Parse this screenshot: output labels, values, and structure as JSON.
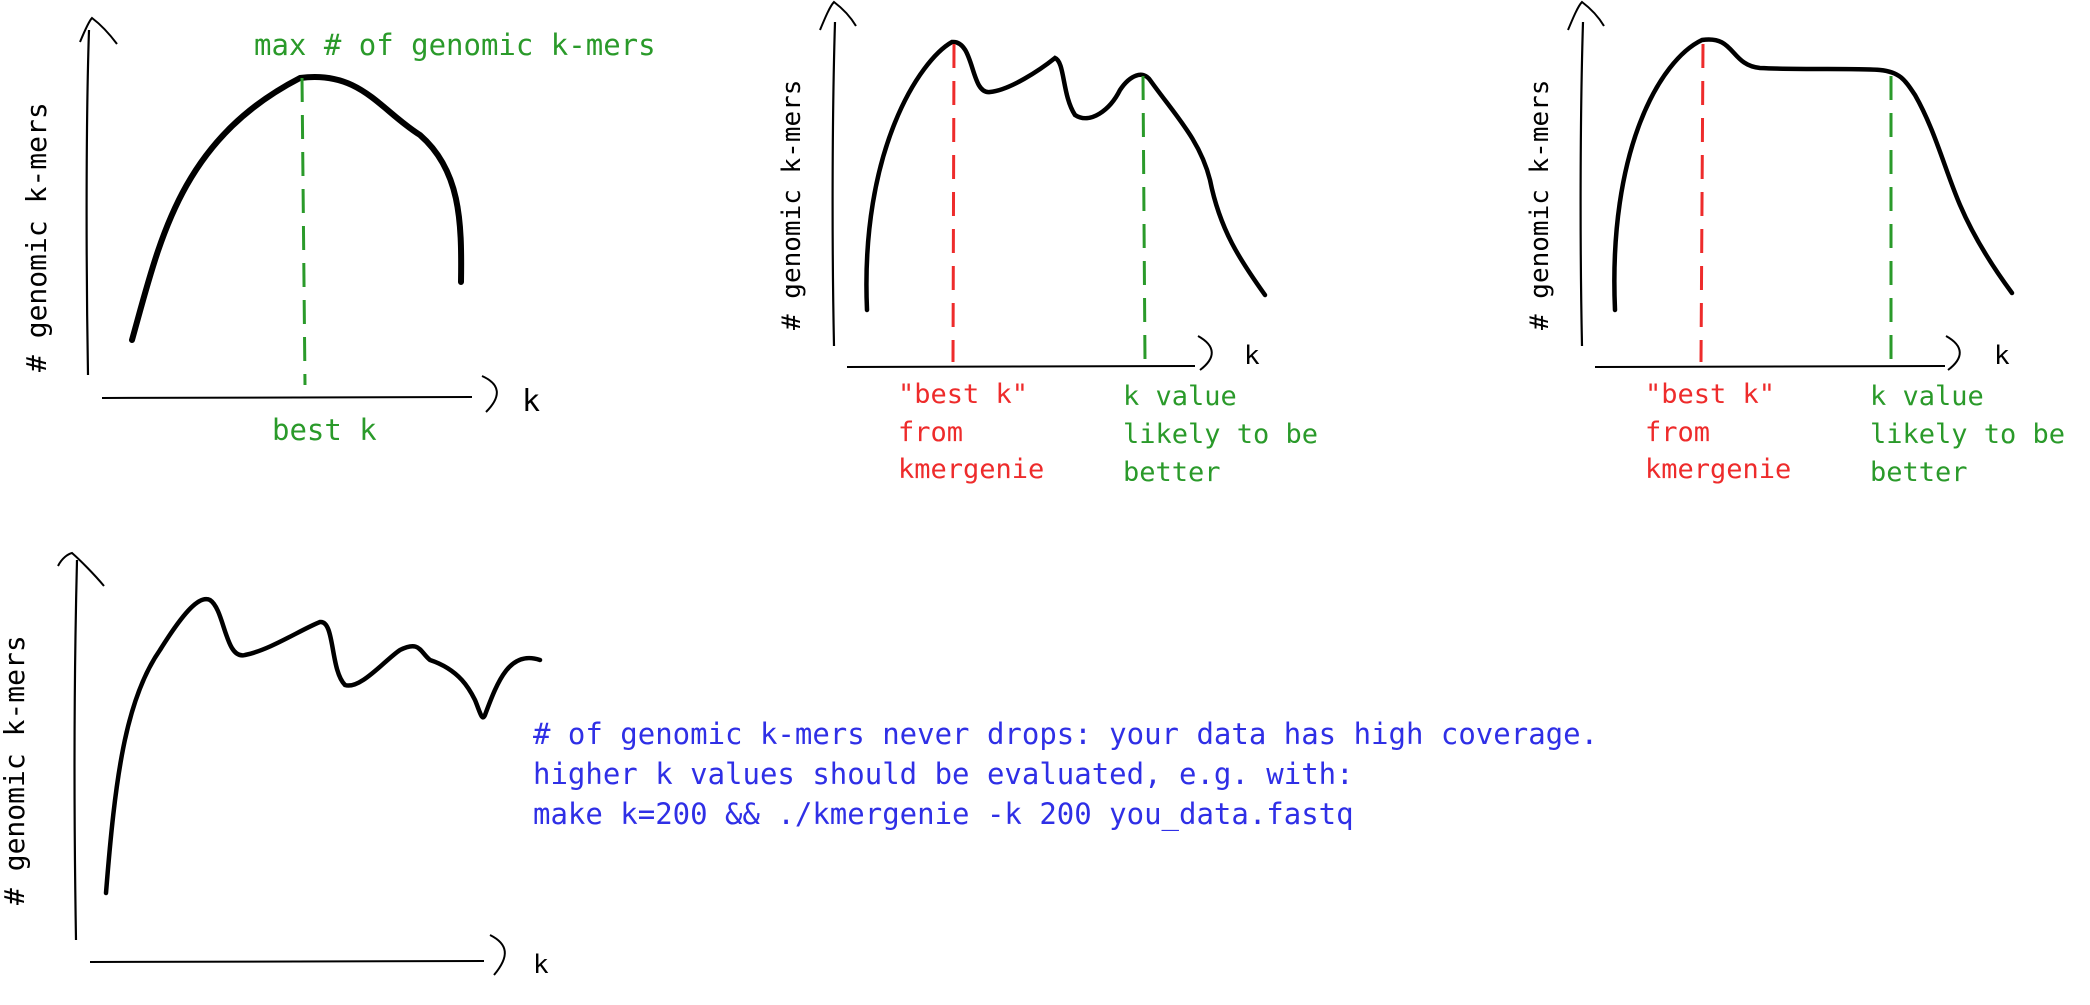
{
  "colors": {
    "ink": "#000000",
    "green": "#2a9a2a",
    "red": "#ee2b2b",
    "blue": "#2f2fe6"
  },
  "panels": [
    {
      "id": "panel1",
      "ylabel": "# genomic k-mers",
      "xlabel": "k",
      "annotations": [
        "max # of genomic k-mers",
        "best k"
      ]
    },
    {
      "id": "panel2",
      "ylabel": "# genomic k-mers",
      "xlabel": "k",
      "red_label": [
        "\"best k\"",
        "from",
        "kmergenie"
      ],
      "green_label": [
        "k value",
        "likely to be",
        "better"
      ]
    },
    {
      "id": "panel3",
      "ylabel": "# genomic k-mers",
      "xlabel": "k",
      "red_label": [
        "\"best k\"",
        "from",
        "kmergenie"
      ],
      "green_label": [
        "k value",
        "likely to be",
        "better"
      ]
    },
    {
      "id": "panel4",
      "ylabel": "# genomic k-mers",
      "xlabel": "k",
      "note": [
        "# of genomic k-mers never drops: your data has high coverage.",
        "higher k values should be evaluated, e.g. with:",
        "make k=200 && ./kmergenie -k 200 you_data.fastq"
      ]
    }
  ]
}
